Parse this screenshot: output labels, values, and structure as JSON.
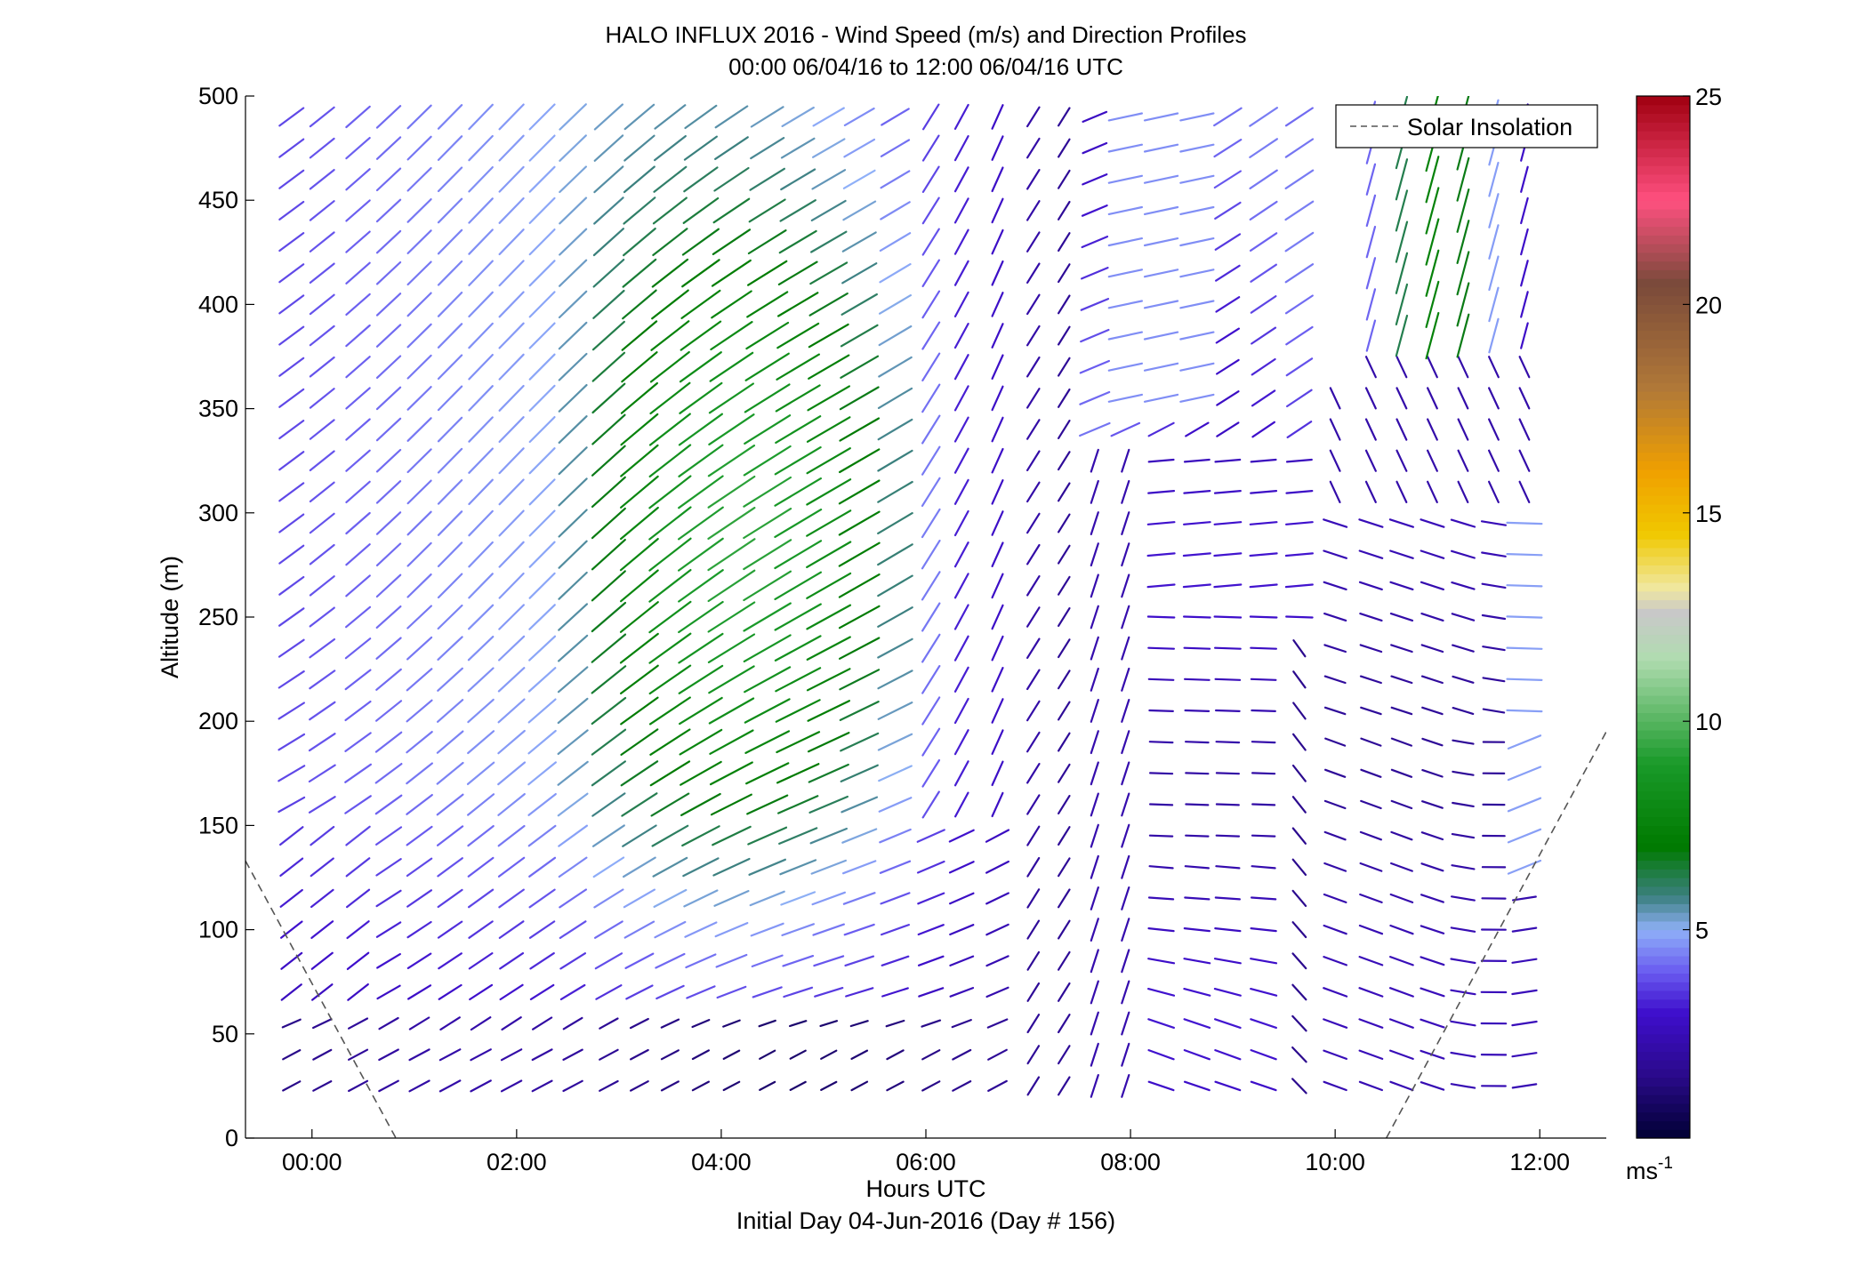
{
  "chart_data": {
    "type": "quiver",
    "title": "HALO INFLUX 2016 - Wind Speed (m/s) and Direction Profiles",
    "subtitle": "00:00 06/04/16 to 12:00 06/04/16  UTC",
    "xlabel": "Hours UTC",
    "xlabel2": "Initial Day 04-Jun-2016 (Day # 156)",
    "ylabel": "Altitude (m)",
    "xlim": [
      -0.65,
      12.65
    ],
    "ylim": [
      0,
      500
    ],
    "xticks": [
      0,
      2,
      4,
      6,
      8,
      10,
      12
    ],
    "xtick_labels": [
      "00:00",
      "02:00",
      "04:00",
      "06:00",
      "08:00",
      "10:00",
      "12:00"
    ],
    "yticks": [
      0,
      50,
      100,
      150,
      200,
      250,
      300,
      350,
      400,
      450,
      500
    ],
    "ytick_labels": [
      "0",
      "50",
      "100",
      "150",
      "200",
      "250",
      "300",
      "350",
      "400",
      "450",
      "500"
    ],
    "legend": {
      "label": "Solar Insolation",
      "position": "top-right"
    },
    "colorbar": {
      "range": [
        0,
        25
      ],
      "ticks": [
        5,
        10,
        15,
        20,
        25
      ],
      "tick_labels": [
        "5",
        "10",
        "15",
        "20",
        "25"
      ],
      "unit_label": "ms",
      "unit_exponent": "-1",
      "stops": [
        {
          "v": 0,
          "c": "#000033"
        },
        {
          "v": 1.5,
          "c": "#2a0a8a"
        },
        {
          "v": 3,
          "c": "#3e0ecc"
        },
        {
          "v": 4,
          "c": "#6a5cf0"
        },
        {
          "v": 5,
          "c": "#8fb0f8"
        },
        {
          "v": 5.8,
          "c": "#3c8080"
        },
        {
          "v": 7,
          "c": "#007a00"
        },
        {
          "v": 9,
          "c": "#1a9a2a"
        },
        {
          "v": 11.5,
          "c": "#b0dcb0"
        },
        {
          "v": 12.6,
          "c": "#c8c8c8"
        },
        {
          "v": 13.2,
          "c": "#f0e8a0"
        },
        {
          "v": 14.5,
          "c": "#f0c800"
        },
        {
          "v": 16,
          "c": "#f0a000"
        },
        {
          "v": 18,
          "c": "#b07838"
        },
        {
          "v": 20.5,
          "c": "#7a4a3a"
        },
        {
          "v": 22.5,
          "c": "#ff5080"
        },
        {
          "v": 25,
          "c": "#a00010"
        }
      ]
    },
    "solar_insolation": [
      {
        "x": [
          -0.65,
          0.82
        ],
        "y": [
          133,
          0
        ]
      },
      {
        "x": [
          10.5,
          12.65
        ],
        "y": [
          0,
          195
        ]
      }
    ],
    "times": [
      -0.2,
      0.1,
      0.45,
      0.75,
      1.05,
      1.35,
      1.65,
      1.95,
      2.25,
      2.55,
      2.9,
      3.2,
      3.5,
      3.8,
      4.1,
      4.45,
      4.75,
      5.05,
      5.35,
      5.7,
      6.05,
      6.35,
      6.7,
      7.05,
      7.35,
      7.65,
      7.95,
      8.3,
      8.65,
      8.95,
      9.3,
      9.65,
      10.0,
      10.35,
      10.65,
      10.95,
      11.25,
      11.55,
      11.85
    ],
    "altitudes": [
      25,
      40,
      55,
      70,
      85,
      100,
      115,
      130,
      145,
      160,
      175,
      190,
      205,
      220,
      235,
      250,
      265,
      280,
      295,
      310,
      325,
      340,
      355,
      370,
      385,
      400,
      415,
      430,
      445,
      460,
      475,
      490
    ],
    "wind_units": "m/s, direction in degrees (meteorological, blowing from)"
  }
}
